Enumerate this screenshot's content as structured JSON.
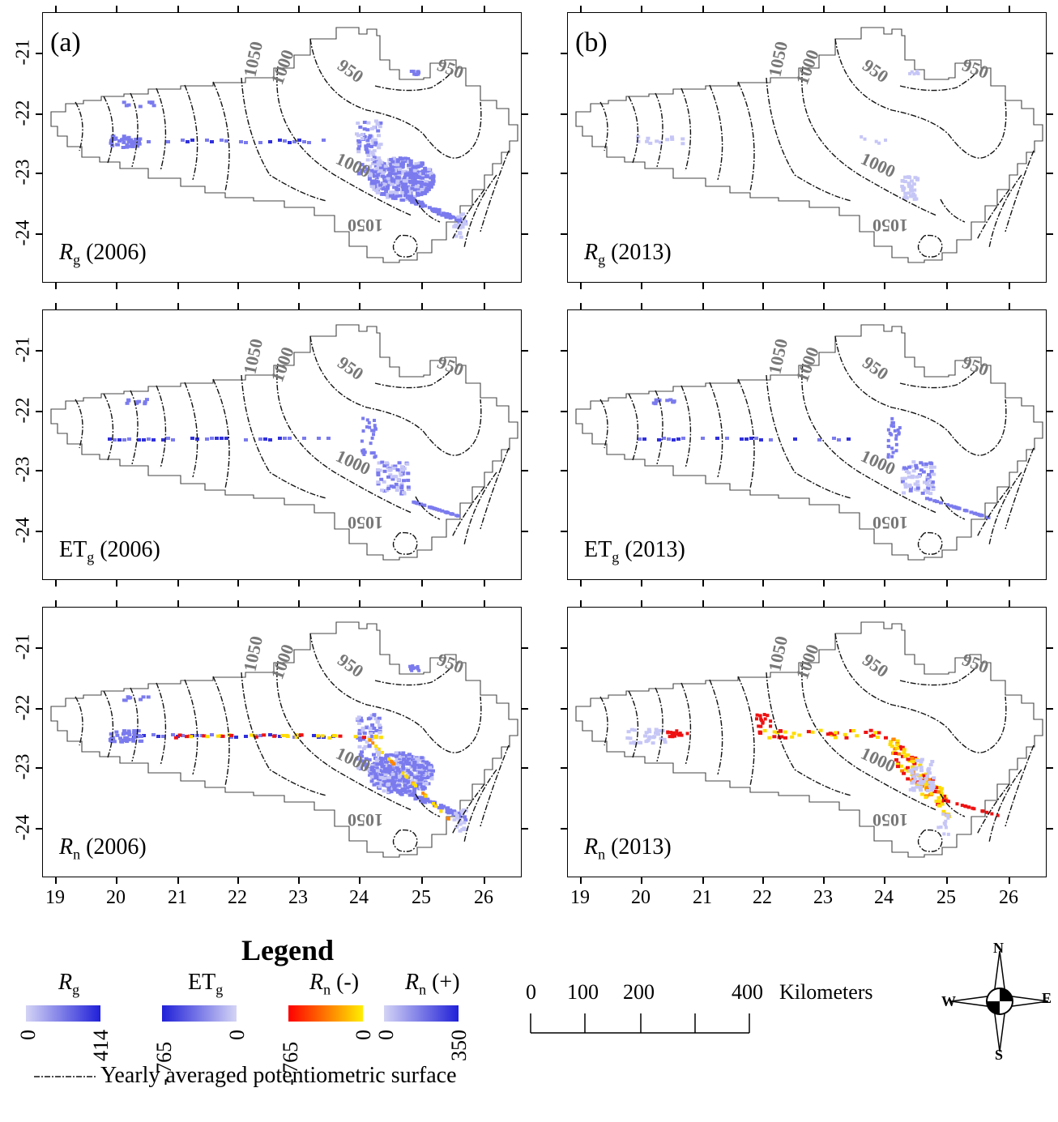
{
  "panels": [
    {
      "letter": "(a)",
      "var": "R",
      "sub": "g",
      "year": "(2006)",
      "mode": "rg06"
    },
    {
      "letter": "(b)",
      "var": "R",
      "sub": "g",
      "year": "(2013)",
      "mode": "rg13"
    },
    {
      "letter": "",
      "var": "ET",
      "sub": "g",
      "year": "(2006)",
      "mode": "et"
    },
    {
      "letter": "",
      "var": "ET",
      "sub": "g",
      "year": "(2013)",
      "mode": "et"
    },
    {
      "letter": "",
      "var": "R",
      "sub": "n",
      "year": "(2006)",
      "mode": "rn06"
    },
    {
      "letter": "",
      "var": "R",
      "sub": "n",
      "year": "(2013)",
      "mode": "rn13"
    }
  ],
  "axes": {
    "y_ticks": [
      "-21",
      "-22",
      "-23",
      "-24"
    ],
    "x_ticks": [
      "19",
      "20",
      "21",
      "22",
      "23",
      "24",
      "25",
      "26"
    ]
  },
  "contour_labels": [
    "1050",
    "1000",
    "950",
    "950",
    "1000",
    "1050"
  ],
  "legend": {
    "title": "Legend",
    "items": [
      {
        "var": "R",
        "sub": "g",
        "suffix": "",
        "min": "0",
        "max": "414",
        "colors": [
          "#d4d4f5",
          "#2020d8"
        ]
      },
      {
        "var": "ET",
        "sub": "g",
        "suffix": "",
        "min": "- 765",
        "max": "0",
        "colors": [
          "#2020d8",
          "#d4d4f5"
        ]
      },
      {
        "var": "R",
        "sub": "n",
        "suffix": " (-)",
        "min": "- 765",
        "max": "0",
        "colors": [
          "#ff0000",
          "#ffee00"
        ]
      },
      {
        "var": "R",
        "sub": "n",
        "suffix": " (+)",
        "min": "0",
        "max": "350",
        "colors": [
          "#d4d4f5",
          "#2020d8"
        ]
      }
    ],
    "contour_text": "Yearly averaged potentiometric surface"
  },
  "scale_bar": {
    "labels": [
      "0",
      "100",
      "200",
      "400"
    ],
    "unit": "Kilometers"
  },
  "compass": {
    "n": "N",
    "s": "S",
    "e": "E",
    "w": "W"
  },
  "colors": {
    "rg": "#7b7bee",
    "rg_light": "#c6c6f6",
    "et": "#3030dc",
    "neg_red": "#ee1111",
    "neg_orange": "#ff8800",
    "neg_yellow": "#ffdd00"
  }
}
